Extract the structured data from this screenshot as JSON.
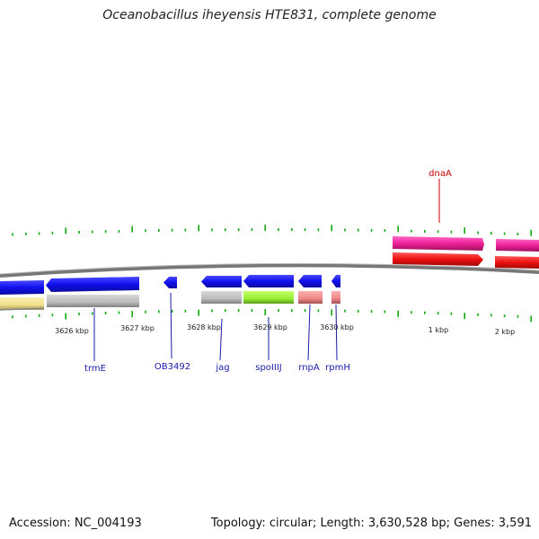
{
  "title": "Oceanobacillus iheyensis HTE831, complete genome",
  "footer": {
    "accession": "Accession: NC_004193",
    "summary": "Topology: circular; Length: 3,630,528 bp; Genes: 3,591"
  },
  "ticks": [
    {
      "label": "3626 kbp"
    },
    {
      "label": "3627 kbp"
    },
    {
      "label": "3628 kbp"
    },
    {
      "label": "3629 kbp"
    },
    {
      "label": "3630 kbp"
    },
    {
      "label": "1 kbp"
    },
    {
      "label": "2 kbp"
    }
  ],
  "gene_labels": [
    {
      "name": "trmE"
    },
    {
      "name": "OB3492"
    },
    {
      "name": "jag"
    },
    {
      "name": "spoIIIJ"
    },
    {
      "name": "rnpA"
    },
    {
      "name": "rpmH"
    },
    {
      "name": "dnaA"
    }
  ],
  "colors": {
    "backbone": "#777777",
    "forward_gene": "#ee2299",
    "forward_cds": "#ee1111",
    "reverse_gene": "#1010ee",
    "tick": "#11aa11",
    "cds_gray": "#bbbbbb",
    "cds_yellow": "#f0e08a",
    "cds_green": "#99ee33",
    "cds_salmon": "#ee8888",
    "label_blue": "#1a1aa8",
    "label_red": "#cc0000"
  }
}
